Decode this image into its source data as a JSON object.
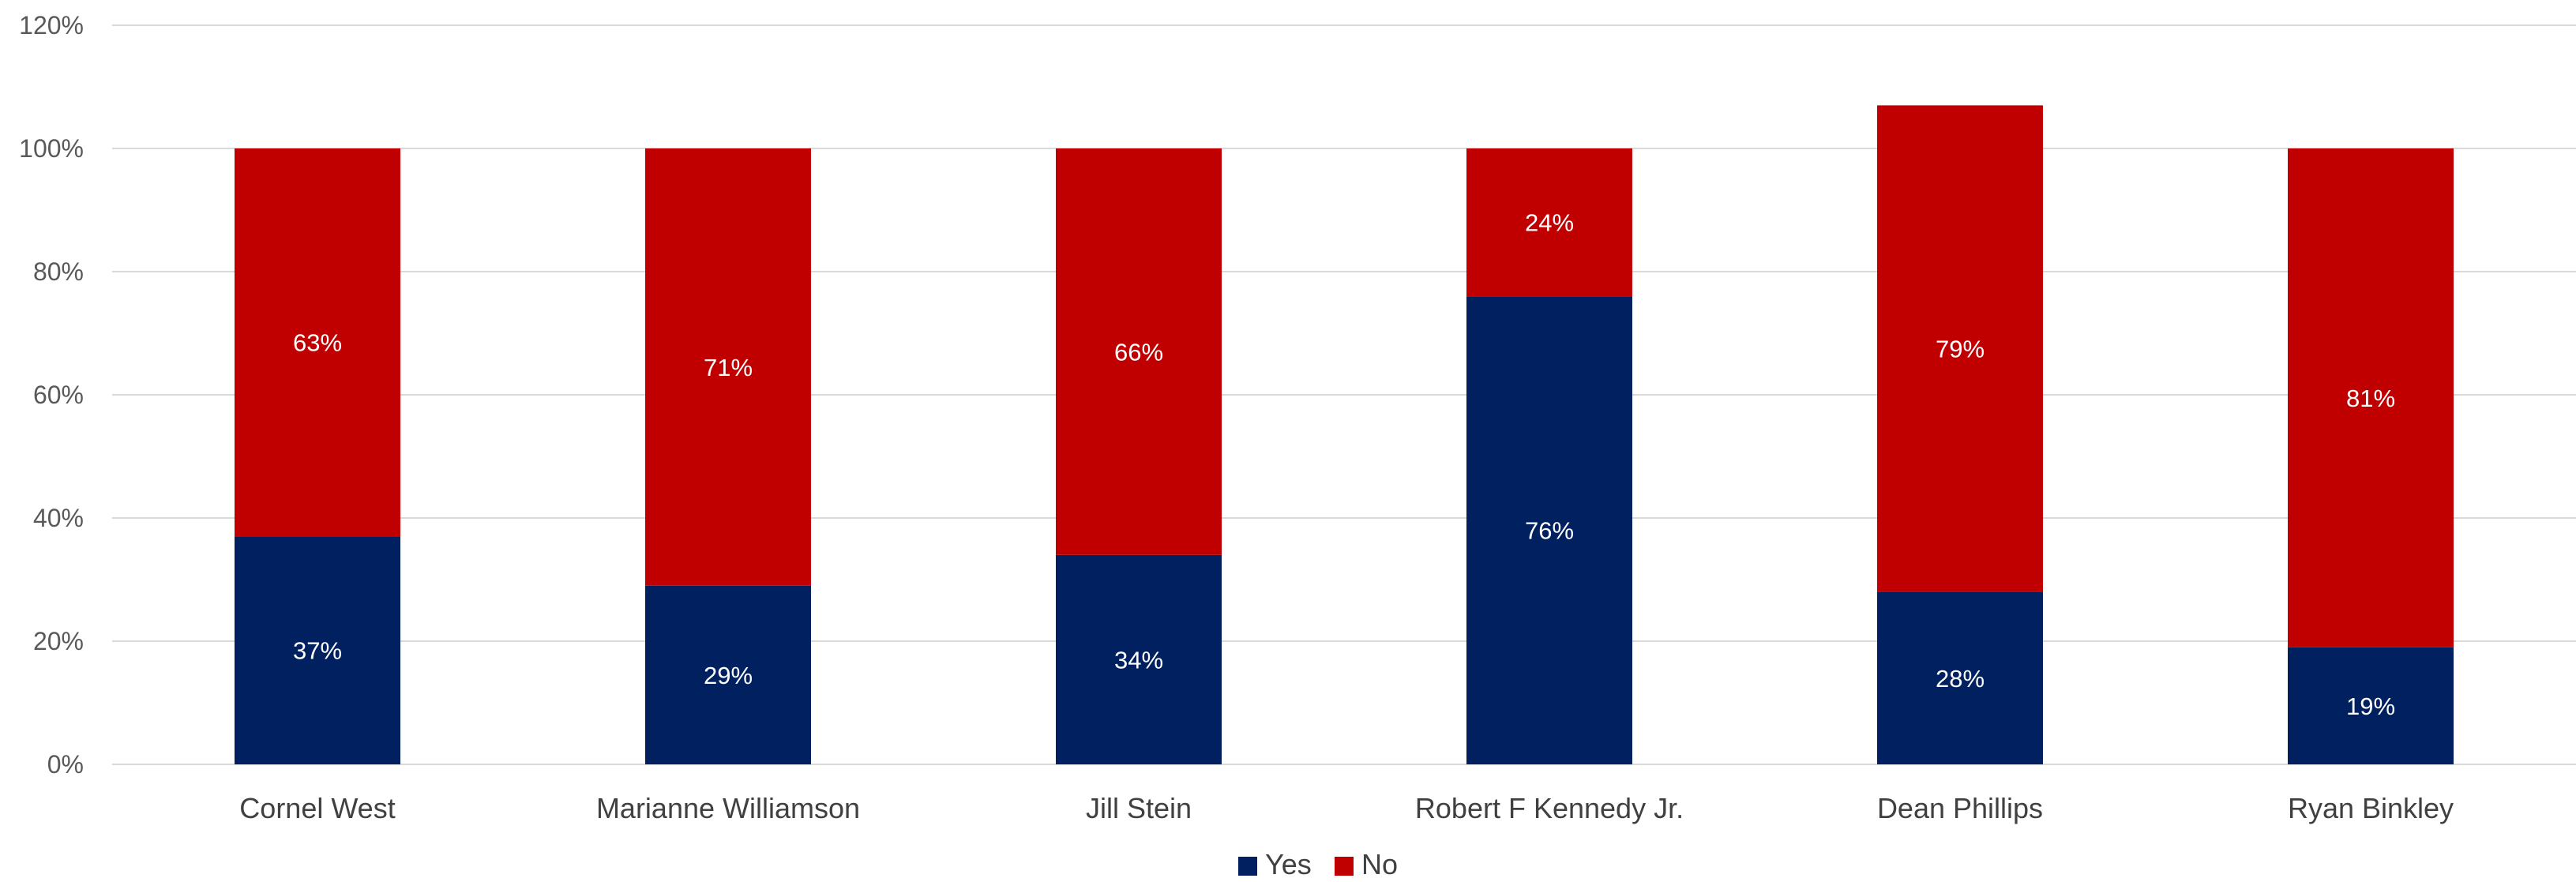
{
  "chart_data": {
    "type": "bar",
    "stacked": true,
    "categories": [
      "Cornel West",
      "Marianne Williamson",
      "Jill Stein",
      "Robert F Kennedy Jr.",
      "Dean Phillips",
      "Ryan Binkley"
    ],
    "series": [
      {
        "name": "Yes",
        "color": "#002060",
        "values": [
          37,
          29,
          34,
          76,
          28,
          19
        ],
        "labels": [
          "37%",
          "29%",
          "34%",
          "76%",
          "28%",
          "19%"
        ]
      },
      {
        "name": "No",
        "color": "#C00000",
        "values": [
          63,
          71,
          66,
          24,
          79,
          81
        ],
        "labels": [
          "63%",
          "71%",
          "66%",
          "24%",
          "79%",
          "81%"
        ]
      }
    ],
    "y_ticks": [
      0,
      20,
      40,
      60,
      80,
      100,
      120
    ],
    "y_tick_labels": [
      "0%",
      "20%",
      "40%",
      "60%",
      "80%",
      "100%",
      "120%"
    ],
    "ylim": [
      0,
      120
    ],
    "grid": true,
    "legend_position": "bottom"
  }
}
